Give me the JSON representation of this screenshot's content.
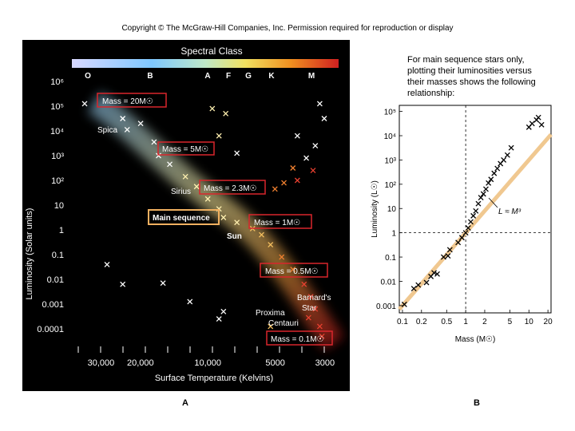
{
  "copyright": "Copyright © The McGraw-Hill Companies, Inc. Permission required for reproduction or display",
  "panel_labels": {
    "a": "A",
    "b": "B"
  },
  "colors": {
    "band": "#f5c27a",
    "box": "#d9262c",
    "main_box": "#f0b060",
    "fit": "#f0c890"
  },
  "chart_data": [
    {
      "type": "scatter",
      "title": "Spectral Class",
      "xlabel": "Surface Temperature (Kelvins)",
      "ylabel": "Luminosity (Solar units)",
      "spectral_classes": [
        "O",
        "B",
        "A",
        "F",
        "G",
        "K",
        "M"
      ],
      "x_ticks": [
        "30,000",
        "20,000",
        "10,000",
        "5000",
        "3000"
      ],
      "y_ticks": [
        "10⁶",
        "10⁵",
        "10⁴",
        "10³",
        "10²",
        "10",
        "1",
        "0.1",
        "0.01",
        "0.001",
        "0.0001"
      ],
      "annotations": {
        "mass20": "Mass = 20M☉",
        "mass5": "Mass = 5M☉",
        "mass23": "Mass = 2.3M☉",
        "mass1": "Mass = 1M☉",
        "mass05": "Mass = 0.5M☉",
        "mass01": "Mass = 0.1M☉",
        "main_sequence": "Main sequence",
        "spica": "Spica",
        "sirius": "Sirius",
        "sun": "Sun",
        "barnard1": "Barnard's",
        "barnard2": "Star",
        "proxima1": "Proxima",
        "proxima2": "Centauri"
      },
      "y_range": [
        -4.5,
        6.5
      ],
      "stars": [
        {
          "logT": 4.55,
          "logL": 5.1
        },
        {
          "logT": 4.38,
          "logL": 4.5
        },
        {
          "logT": 4.3,
          "logL": 4.3
        },
        {
          "logT": 4.36,
          "logL": 4.05
        },
        {
          "logT": 4.24,
          "logL": 3.55
        },
        {
          "logT": 4.22,
          "logL": 3.0
        },
        {
          "logT": 4.17,
          "logL": 2.65
        },
        {
          "logT": 4.1,
          "logL": 2.15
        },
        {
          "logT": 4.05,
          "logL": 1.75
        },
        {
          "logT": 4.0,
          "logL": 1.25
        },
        {
          "logT": 3.95,
          "logL": 0.85
        },
        {
          "logT": 3.93,
          "logL": 0.5
        },
        {
          "logT": 3.87,
          "logL": 0.3
        },
        {
          "logT": 3.8,
          "logL": 0.05
        },
        {
          "logT": 3.76,
          "logL": -0.2
        },
        {
          "logT": 3.72,
          "logL": -0.6
        },
        {
          "logT": 3.67,
          "logL": -1.1
        },
        {
          "logT": 3.62,
          "logL": -1.6
        },
        {
          "logT": 3.57,
          "logL": -2.2
        },
        {
          "logT": 3.54,
          "logL": -2.7
        },
        {
          "logT": 3.52,
          "logL": -3.2
        },
        {
          "logT": 3.5,
          "logL": -3.9
        },
        {
          "logT": 3.49,
          "logL": -4.3
        },
        {
          "logT": 3.55,
          "logL": -3.55
        },
        {
          "logT": 3.98,
          "logL": 4.9
        },
        {
          "logT": 3.92,
          "logL": 4.7
        },
        {
          "logT": 3.95,
          "logL": 3.8
        },
        {
          "logT": 3.87,
          "logL": 3.1
        },
        {
          "logT": 3.6,
          "logL": 3.8
        },
        {
          "logT": 3.52,
          "logL": 3.4
        },
        {
          "logT": 3.56,
          "logL": 2.9
        },
        {
          "logT": 3.62,
          "logL": 2.5
        },
        {
          "logT": 3.6,
          "logL": 2.0
        },
        {
          "logT": 3.66,
          "logL": 1.9
        },
        {
          "logT": 3.7,
          "logL": 1.65
        },
        {
          "logT": 3.5,
          "logL": 5.1
        },
        {
          "logT": 3.48,
          "logL": 4.5
        },
        {
          "logT": 3.53,
          "logL": 2.4
        },
        {
          "logT": 4.45,
          "logL": -1.4
        },
        {
          "logT": 4.38,
          "logL": -2.2
        },
        {
          "logT": 4.2,
          "logL": -2.15
        },
        {
          "logT": 4.08,
          "logL": -2.9
        },
        {
          "logT": 3.93,
          "logL": -3.3
        },
        {
          "logT": 3.95,
          "logL": -3.6
        },
        {
          "logT": 3.72,
          "logL": -3.9
        }
      ]
    },
    {
      "type": "scatter",
      "title": "For main sequence stars only, plotting their luminosities versus their masses shows the following relationship:",
      "title_lines": [
        "For main sequence stars only,",
        "plotting their luminosities versus",
        "their masses shows the following",
        "relationship:"
      ],
      "xlabel": "Mass (M☉)",
      "ylabel": "Luminosity (L☉)",
      "x_ticks": [
        "0.1",
        "0.2",
        "0.5",
        "1",
        "2",
        "5",
        "10",
        "20"
      ],
      "y_ticks": [
        "10⁵",
        "10⁴",
        "10³",
        "10²",
        "10",
        "1",
        "0.1",
        "0.01",
        "0.001"
      ],
      "fit_label": "L ≈ M³",
      "x_range": [
        -1.05,
        1.35
      ],
      "y_range": [
        -3.3,
        5.25
      ],
      "points": [
        {
          "logM": -0.97,
          "logL": -2.95
        },
        {
          "logM": -0.82,
          "logL": -2.3
        },
        {
          "logM": -0.75,
          "logL": -2.15
        },
        {
          "logM": -0.62,
          "logL": -2.05
        },
        {
          "logM": -0.55,
          "logL": -1.8
        },
        {
          "logM": -0.5,
          "logL": -1.65
        },
        {
          "logM": -0.45,
          "logL": -1.7
        },
        {
          "logM": -0.35,
          "logL": -1.0
        },
        {
          "logM": -0.28,
          "logL": -0.95
        },
        {
          "logM": -0.25,
          "logL": -0.7
        },
        {
          "logM": -0.12,
          "logL": -0.4
        },
        {
          "logM": -0.06,
          "logL": -0.2
        },
        {
          "logM": 0.0,
          "logL": 0.0
        },
        {
          "logM": 0.04,
          "logL": 0.2
        },
        {
          "logM": 0.08,
          "logL": 0.45
        },
        {
          "logM": 0.12,
          "logL": 0.7
        },
        {
          "logM": 0.16,
          "logL": 0.9
        },
        {
          "logM": 0.2,
          "logL": 1.2
        },
        {
          "logM": 0.24,
          "logL": 1.45
        },
        {
          "logM": 0.28,
          "logL": 1.6
        },
        {
          "logM": 0.32,
          "logL": 1.8
        },
        {
          "logM": 0.36,
          "logL": 2.05
        },
        {
          "logM": 0.4,
          "logL": 2.2
        },
        {
          "logM": 0.45,
          "logL": 2.45
        },
        {
          "logM": 0.5,
          "logL": 2.65
        },
        {
          "logM": 0.55,
          "logL": 2.85
        },
        {
          "logM": 0.6,
          "logL": 3.0
        },
        {
          "logM": 0.66,
          "logL": 3.2
        },
        {
          "logM": 0.72,
          "logL": 3.5
        },
        {
          "logM": 1.0,
          "logL": 4.35
        },
        {
          "logM": 1.05,
          "logL": 4.5
        },
        {
          "logM": 1.12,
          "logL": 4.65
        },
        {
          "logM": 1.15,
          "logL": 4.75
        },
        {
          "logM": 1.2,
          "logL": 4.45
        }
      ]
    }
  ]
}
